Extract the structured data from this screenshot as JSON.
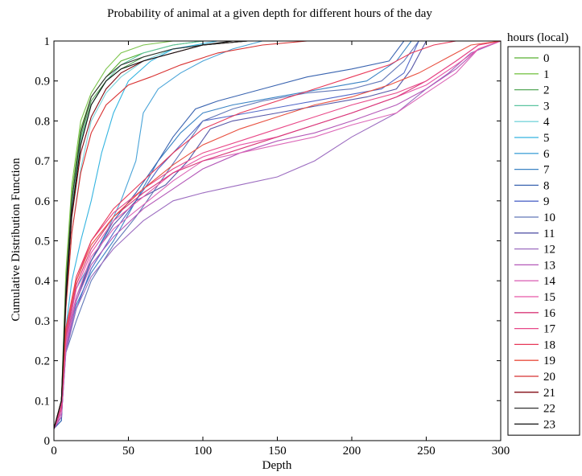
{
  "chart_data": {
    "type": "line",
    "title": "Probability of animal at a given depth for different hours of the day",
    "xlabel": "Depth",
    "ylabel": "Cumulative Distribution Function",
    "xlim": [
      0,
      300
    ],
    "ylim": [
      0,
      1
    ],
    "xticks": [
      "0",
      "50",
      "100",
      "150",
      "200",
      "250",
      "300"
    ],
    "yticks": [
      "0",
      "0.1",
      "0.2",
      "0.3",
      "0.4",
      "0.5",
      "0.6",
      "0.7",
      "0.8",
      "0.9",
      "1"
    ],
    "grid": false,
    "legend_title": "hours (local)",
    "legend_position": "right",
    "series": [
      {
        "name": "0",
        "color": "#58b030",
        "x": [
          0,
          5,
          8,
          12,
          18,
          25,
          35,
          45,
          60,
          80,
          100,
          140,
          180,
          300
        ],
        "y": [
          0.03,
          0.1,
          0.4,
          0.62,
          0.78,
          0.86,
          0.91,
          0.95,
          0.97,
          0.99,
          1,
          1,
          1,
          1
        ]
      },
      {
        "name": "1",
        "color": "#7cc44c",
        "x": [
          0,
          5,
          8,
          12,
          18,
          25,
          35,
          45,
          60,
          80,
          95,
          140,
          300
        ],
        "y": [
          0.03,
          0.1,
          0.42,
          0.64,
          0.8,
          0.87,
          0.93,
          0.97,
          0.99,
          1,
          1,
          1,
          1
        ]
      },
      {
        "name": "2",
        "color": "#56a85a",
        "x": [
          0,
          5,
          8,
          12,
          18,
          25,
          35,
          45,
          60,
          80,
          100,
          130,
          170,
          300
        ],
        "y": [
          0.03,
          0.1,
          0.38,
          0.6,
          0.76,
          0.85,
          0.9,
          0.93,
          0.96,
          0.98,
          0.99,
          1,
          1,
          1
        ]
      },
      {
        "name": "3",
        "color": "#5cc4a0",
        "x": [
          0,
          5,
          8,
          12,
          18,
          25,
          35,
          45,
          60,
          80,
          100,
          300
        ],
        "y": [
          0.03,
          0.09,
          0.36,
          0.58,
          0.75,
          0.84,
          0.9,
          0.94,
          0.97,
          0.99,
          1,
          1
        ]
      },
      {
        "name": "4",
        "color": "#7ad4dc",
        "x": [
          0,
          5,
          8,
          12,
          18,
          25,
          35,
          45,
          60,
          80,
          100,
          130,
          300
        ],
        "y": [
          0.03,
          0.08,
          0.33,
          0.52,
          0.68,
          0.8,
          0.87,
          0.91,
          0.95,
          0.98,
          0.99,
          1,
          1
        ]
      },
      {
        "name": "5",
        "color": "#34b4e0",
        "x": [
          0,
          5,
          8,
          12,
          18,
          25,
          32,
          40,
          50,
          65,
          80,
          110,
          140,
          300
        ],
        "y": [
          0.03,
          0.06,
          0.28,
          0.4,
          0.5,
          0.6,
          0.72,
          0.82,
          0.9,
          0.95,
          0.98,
          1,
          1,
          1
        ]
      },
      {
        "name": "6",
        "color": "#4aa4d8",
        "x": [
          0,
          5,
          8,
          15,
          25,
          35,
          45,
          55,
          60,
          70,
          85,
          100,
          120,
          140,
          300
        ],
        "y": [
          0.03,
          0.05,
          0.27,
          0.38,
          0.45,
          0.52,
          0.6,
          0.7,
          0.82,
          0.88,
          0.92,
          0.95,
          0.98,
          1,
          1
        ]
      },
      {
        "name": "7",
        "color": "#3c84c4",
        "x": [
          0,
          5,
          8,
          15,
          25,
          40,
          55,
          70,
          85,
          100,
          120,
          150,
          180,
          210,
          230,
          240,
          300
        ],
        "y": [
          0.03,
          0.06,
          0.24,
          0.34,
          0.42,
          0.5,
          0.6,
          0.7,
          0.77,
          0.82,
          0.84,
          0.86,
          0.88,
          0.9,
          0.95,
          1,
          1
        ]
      },
      {
        "name": "8",
        "color": "#3a64b0",
        "x": [
          0,
          5,
          8,
          15,
          25,
          40,
          55,
          70,
          80,
          95,
          110,
          140,
          170,
          200,
          225,
          235,
          300
        ],
        "y": [
          0.03,
          0.05,
          0.25,
          0.35,
          0.45,
          0.55,
          0.62,
          0.7,
          0.76,
          0.83,
          0.85,
          0.88,
          0.91,
          0.93,
          0.95,
          1,
          1
        ]
      },
      {
        "name": "9",
        "color": "#5268c8",
        "x": [
          0,
          5,
          8,
          15,
          25,
          40,
          55,
          70,
          85,
          100,
          130,
          160,
          190,
          220,
          235,
          245,
          300
        ],
        "y": [
          0.03,
          0.07,
          0.23,
          0.33,
          0.43,
          0.52,
          0.6,
          0.68,
          0.74,
          0.8,
          0.82,
          0.84,
          0.86,
          0.88,
          0.92,
          1,
          1
        ]
      },
      {
        "name": "10",
        "color": "#6278b8",
        "x": [
          0,
          5,
          8,
          15,
          25,
          40,
          55,
          70,
          85,
          100,
          120,
          140,
          170,
          200,
          220,
          235,
          245,
          300
        ],
        "y": [
          0.03,
          0.06,
          0.22,
          0.3,
          0.4,
          0.49,
          0.56,
          0.64,
          0.72,
          0.8,
          0.83,
          0.85,
          0.87,
          0.88,
          0.9,
          0.95,
          1,
          1
        ]
      },
      {
        "name": "11",
        "color": "#5858a8",
        "x": [
          0,
          5,
          8,
          15,
          25,
          40,
          55,
          75,
          90,
          105,
          120,
          150,
          180,
          210,
          230,
          240,
          250,
          300
        ],
        "y": [
          0.03,
          0.07,
          0.25,
          0.36,
          0.45,
          0.54,
          0.6,
          0.64,
          0.7,
          0.78,
          0.8,
          0.82,
          0.84,
          0.86,
          0.88,
          0.93,
          1,
          1
        ]
      },
      {
        "name": "12",
        "color": "#9c6cc0",
        "x": [
          0,
          5,
          8,
          15,
          25,
          40,
          60,
          80,
          100,
          125,
          150,
          175,
          200,
          230,
          250,
          265,
          280,
          300
        ],
        "y": [
          0.03,
          0.06,
          0.22,
          0.33,
          0.41,
          0.48,
          0.55,
          0.6,
          0.62,
          0.64,
          0.66,
          0.7,
          0.76,
          0.82,
          0.88,
          0.92,
          0.97,
          1
        ]
      },
      {
        "name": "13",
        "color": "#b458b8",
        "x": [
          0,
          5,
          8,
          15,
          25,
          40,
          60,
          80,
          100,
          125,
          150,
          175,
          200,
          230,
          250,
          270,
          285,
          300
        ],
        "y": [
          0.03,
          0.06,
          0.23,
          0.35,
          0.44,
          0.51,
          0.58,
          0.63,
          0.68,
          0.72,
          0.75,
          0.77,
          0.8,
          0.84,
          0.88,
          0.93,
          0.98,
          1
        ]
      },
      {
        "name": "14",
        "color": "#dc68b8",
        "x": [
          0,
          5,
          8,
          15,
          25,
          40,
          60,
          80,
          100,
          125,
          150,
          175,
          200,
          230,
          250,
          270,
          285,
          300
        ],
        "y": [
          0.03,
          0.07,
          0.24,
          0.36,
          0.46,
          0.53,
          0.59,
          0.65,
          0.7,
          0.72,
          0.74,
          0.76,
          0.79,
          0.82,
          0.87,
          0.92,
          0.98,
          1
        ]
      },
      {
        "name": "15",
        "color": "#e858a8",
        "x": [
          0,
          5,
          8,
          15,
          25,
          40,
          60,
          80,
          100,
          125,
          150,
          175,
          200,
          230,
          250,
          270,
          285,
          300
        ],
        "y": [
          0.03,
          0.08,
          0.25,
          0.38,
          0.47,
          0.55,
          0.61,
          0.67,
          0.71,
          0.74,
          0.76,
          0.79,
          0.82,
          0.86,
          0.89,
          0.94,
          0.98,
          1
        ]
      },
      {
        "name": "16",
        "color": "#d83878",
        "x": [
          0,
          5,
          8,
          15,
          25,
          40,
          60,
          80,
          100,
          125,
          150,
          175,
          200,
          230,
          250,
          270,
          285,
          300
        ],
        "y": [
          0.03,
          0.08,
          0.26,
          0.39,
          0.48,
          0.56,
          0.62,
          0.67,
          0.7,
          0.73,
          0.76,
          0.79,
          0.82,
          0.86,
          0.9,
          0.95,
          0.99,
          1
        ]
      },
      {
        "name": "17",
        "color": "#e84888",
        "x": [
          0,
          5,
          8,
          15,
          25,
          40,
          60,
          80,
          100,
          125,
          150,
          175,
          200,
          230,
          250,
          270,
          285,
          300
        ],
        "y": [
          0.03,
          0.09,
          0.27,
          0.4,
          0.5,
          0.57,
          0.63,
          0.68,
          0.72,
          0.75,
          0.78,
          0.81,
          0.84,
          0.87,
          0.9,
          0.95,
          0.99,
          1
        ]
      },
      {
        "name": "18",
        "color": "#e83858",
        "x": [
          0,
          5,
          8,
          15,
          25,
          40,
          60,
          80,
          100,
          125,
          150,
          175,
          200,
          225,
          240,
          255,
          270,
          300
        ],
        "y": [
          0.03,
          0.1,
          0.28,
          0.41,
          0.5,
          0.58,
          0.65,
          0.72,
          0.78,
          0.82,
          0.85,
          0.88,
          0.91,
          0.94,
          0.97,
          0.99,
          1,
          1
        ]
      },
      {
        "name": "19",
        "color": "#e85040",
        "x": [
          0,
          5,
          8,
          15,
          25,
          40,
          60,
          80,
          100,
          125,
          150,
          175,
          200,
          225,
          245,
          265,
          280,
          300
        ],
        "y": [
          0.03,
          0.1,
          0.28,
          0.4,
          0.49,
          0.56,
          0.63,
          0.69,
          0.74,
          0.78,
          0.81,
          0.84,
          0.86,
          0.89,
          0.92,
          0.96,
          0.99,
          1
        ]
      },
      {
        "name": "20",
        "color": "#d83030",
        "x": [
          0,
          5,
          8,
          12,
          18,
          25,
          35,
          50,
          65,
          85,
          110,
          140,
          170,
          300
        ],
        "y": [
          0.03,
          0.1,
          0.33,
          0.52,
          0.67,
          0.77,
          0.84,
          0.89,
          0.91,
          0.94,
          0.97,
          0.99,
          1,
          1
        ]
      },
      {
        "name": "21",
        "color": "#800810",
        "x": [
          0,
          5,
          8,
          12,
          18,
          25,
          35,
          45,
          60,
          80,
          100,
          130,
          160,
          300
        ],
        "y": [
          0.03,
          0.1,
          0.35,
          0.56,
          0.72,
          0.81,
          0.88,
          0.92,
          0.95,
          0.97,
          0.99,
          1,
          1,
          1
        ]
      },
      {
        "name": "22",
        "color": "#303030",
        "x": [
          0,
          5,
          8,
          12,
          18,
          25,
          35,
          45,
          60,
          80,
          100,
          130,
          300
        ],
        "y": [
          0.03,
          0.1,
          0.38,
          0.6,
          0.77,
          0.86,
          0.91,
          0.94,
          0.96,
          0.98,
          0.99,
          1,
          1
        ]
      },
      {
        "name": "23",
        "color": "#101010",
        "x": [
          0,
          5,
          8,
          12,
          18,
          25,
          35,
          45,
          60,
          80,
          100,
          120,
          140,
          300
        ],
        "y": [
          0.03,
          0.1,
          0.35,
          0.57,
          0.74,
          0.84,
          0.9,
          0.93,
          0.95,
          0.97,
          0.99,
          1,
          1,
          1
        ]
      }
    ]
  }
}
